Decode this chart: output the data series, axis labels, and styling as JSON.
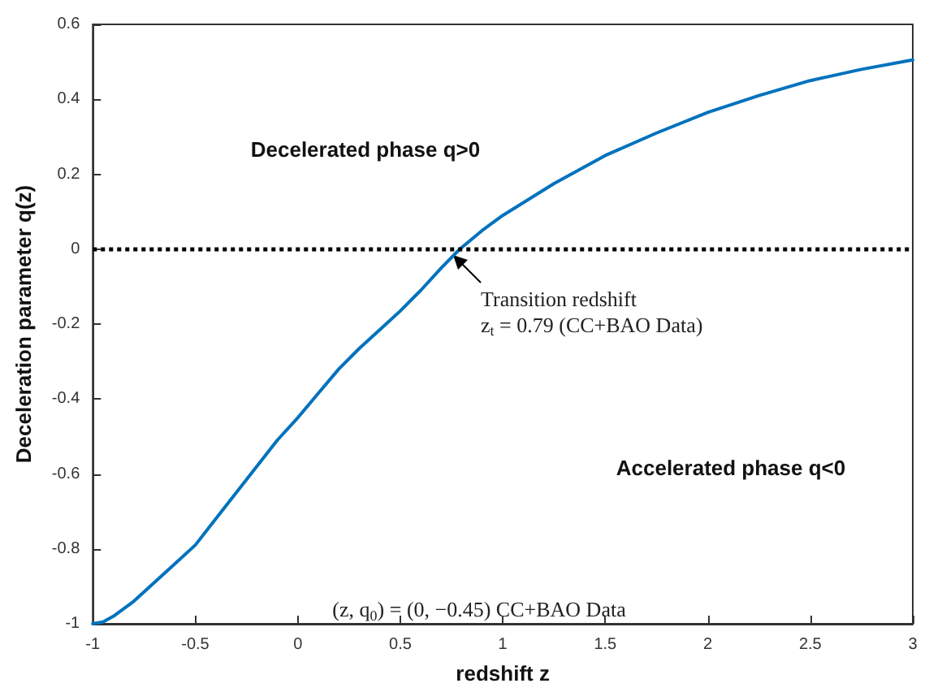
{
  "chart_data": {
    "type": "line",
    "xlabel": "redshift z",
    "ylabel": "Deceleration parameter q(z)",
    "series": [
      {
        "color": "#0072bd",
        "x": [
          -1,
          -0.95,
          -0.9,
          -0.8,
          -0.7,
          -0.6,
          -0.5,
          -0.4,
          -0.3,
          -0.2,
          -0.1,
          0,
          0.1,
          0.2,
          0.3,
          0.4,
          0.5,
          0.6,
          0.7,
          0.79,
          0.9,
          1,
          1.25,
          1.5,
          1.75,
          2,
          2.25,
          2.5,
          2.75,
          3
        ],
        "values": [
          -1,
          -0.995,
          -0.98,
          -0.94,
          -0.89,
          -0.84,
          -0.79,
          -0.72,
          -0.65,
          -0.58,
          -0.51,
          -0.45,
          -0.385,
          -0.32,
          -0.265,
          -0.215,
          -0.165,
          -0.11,
          -0.05,
          0,
          0.05,
          0.09,
          0.175,
          0.25,
          0.31,
          0.365,
          0.41,
          0.45,
          0.48,
          0.505
        ]
      }
    ],
    "xlim": [
      -1,
      3
    ],
    "xticks": [
      -1,
      -0.5,
      0,
      0.5,
      1,
      1.5,
      2,
      2.5,
      3
    ],
    "ylim": [
      -1,
      0.6
    ],
    "yticks": [
      -1,
      -0.8,
      -0.6,
      -0.4,
      -0.2,
      0,
      0.2,
      0.4,
      0.6
    ],
    "ref_lines": [
      {
        "axis": "y",
        "value": 0,
        "color": "#000000",
        "line_style": "dotted"
      }
    ],
    "annotations": [
      "Decelerated phase q>0",
      "Accelerated phase q<0",
      {
        "text": "Transition redshift\nz$_{t}$ = 0.79 (CC+BAO Data)",
        "x": 0.79,
        "y": 0
      },
      "(z, q$_{0}$) = (0, −0.45) CC+BAO Data"
    ],
    "marker": "none",
    "line_style": "solid"
  }
}
